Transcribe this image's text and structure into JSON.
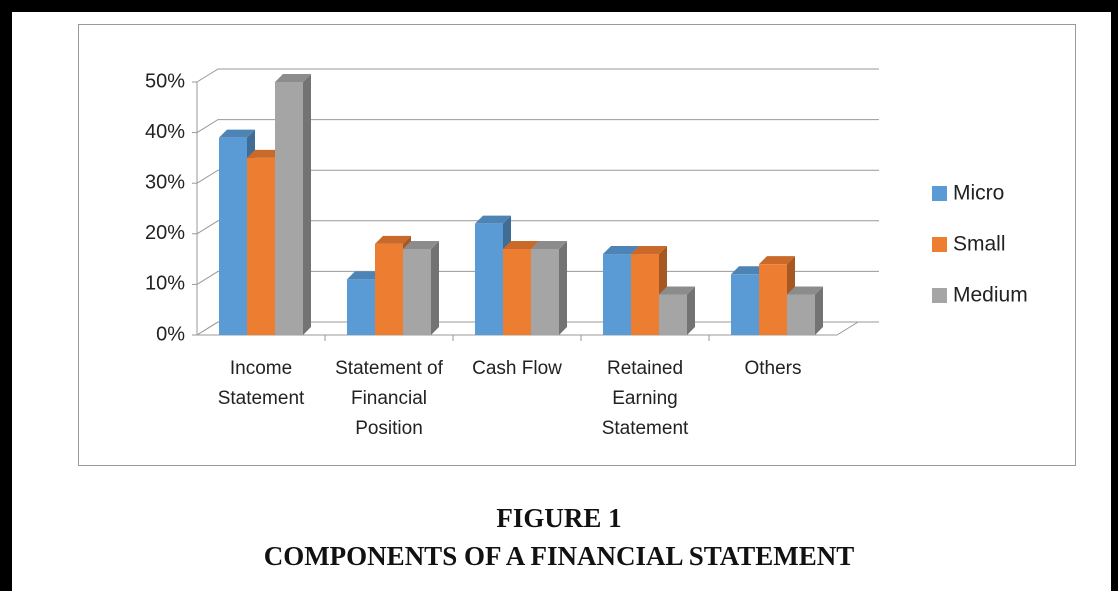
{
  "chart_data": {
    "type": "bar3d",
    "caption": [
      "FIGURE 1",
      "COMPONENTS OF A FINANCIAL STATEMENT"
    ],
    "categories": [
      "Income Statement",
      "Statement of Financial Position",
      "Cash Flow",
      "Retained Earning Statement",
      "Others"
    ],
    "series": [
      {
        "name": "Micro",
        "color": "#5b9bd5",
        "values": [
          39,
          11,
          22,
          16,
          12
        ]
      },
      {
        "name": "Small",
        "color": "#ed7d31",
        "values": [
          35,
          18,
          17,
          16,
          14
        ]
      },
      {
        "name": "Medium",
        "color": "#a5a5a5",
        "values": [
          50,
          17,
          17,
          8,
          8
        ]
      }
    ],
    "ylim": [
      0,
      50
    ],
    "yticks": [
      {
        "value": 0,
        "label": "0%"
      },
      {
        "value": 10,
        "label": "10%"
      },
      {
        "value": 20,
        "label": "20%"
      },
      {
        "value": 30,
        "label": "30%"
      },
      {
        "value": 40,
        "label": "40%"
      },
      {
        "value": 50,
        "label": "50%"
      }
    ],
    "grid": true,
    "legend": "right"
  }
}
